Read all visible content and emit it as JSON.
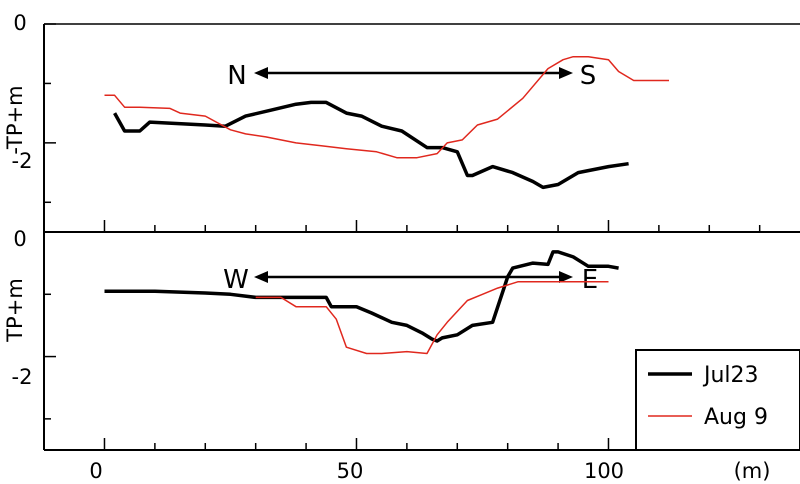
{
  "chart_data": [
    {
      "type": "line",
      "ylabel": "-TP+m",
      "ylim": [
        -3.5,
        0
      ],
      "xlim": [
        -12,
        138
      ],
      "yticks": [
        {
          "value": 0,
          "label": "0"
        },
        {
          "value": -2,
          "label": "-2"
        }
      ],
      "xtick_values": [
        0,
        50,
        100
      ],
      "direction": {
        "left": "N",
        "right": "S"
      },
      "series": [
        {
          "name": "Jul23",
          "color": "#000000",
          "x": [
            2,
            4,
            7,
            9,
            20,
            24,
            28,
            33,
            38,
            41,
            44,
            48,
            51,
            55,
            59,
            64,
            67,
            70,
            72,
            73,
            77,
            81,
            85,
            87,
            90,
            94,
            100,
            104
          ],
          "y": [
            -1.5,
            -1.8,
            -1.8,
            -1.65,
            -1.7,
            -1.72,
            -1.55,
            -1.45,
            -1.35,
            -1.32,
            -1.32,
            -1.5,
            -1.55,
            -1.72,
            -1.8,
            -2.08,
            -2.08,
            -2.15,
            -2.55,
            -2.55,
            -2.4,
            -2.5,
            -2.65,
            -2.75,
            -2.7,
            -2.5,
            -2.4,
            -2.35
          ]
        },
        {
          "name": "Aug 9",
          "color": "#e0281e",
          "x": [
            0,
            2,
            4,
            7,
            13,
            15,
            20,
            25,
            28,
            32,
            38,
            43,
            48,
            54,
            58,
            62,
            66,
            68,
            71,
            74,
            78,
            83,
            88,
            91,
            93,
            96,
            100,
            102,
            105,
            112
          ],
          "y": [
            -1.2,
            -1.2,
            -1.4,
            -1.4,
            -1.42,
            -1.5,
            -1.55,
            -1.78,
            -1.85,
            -1.9,
            -2.0,
            -2.05,
            -2.1,
            -2.15,
            -2.25,
            -2.25,
            -2.18,
            -2.0,
            -1.95,
            -1.7,
            -1.6,
            -1.25,
            -0.75,
            -0.6,
            -0.55,
            -0.55,
            -0.6,
            -0.8,
            -0.95,
            -0.95
          ]
        }
      ]
    },
    {
      "type": "line",
      "ylabel": "TP+m",
      "ylim": [
        -3.5,
        0
      ],
      "xlim": [
        -12,
        138
      ],
      "yticks": [
        {
          "value": 0,
          "label": "0"
        },
        {
          "value": -2,
          "label": "-2"
        }
      ],
      "xticks": [
        {
          "value": 0,
          "label": "0"
        },
        {
          "value": 50,
          "label": "50"
        },
        {
          "value": 100,
          "label": "100"
        }
      ],
      "x_unit": "(m)",
      "direction": {
        "left": "W",
        "right": "E"
      },
      "legend": {
        "position": "bottom-right",
        "entries": [
          "Jul23",
          "Aug 9"
        ]
      },
      "series": [
        {
          "name": "Jul23",
          "color": "#000000",
          "x": [
            0,
            5,
            10,
            20,
            25,
            30,
            35,
            40,
            44,
            45,
            50,
            53,
            57,
            60,
            63,
            65,
            66,
            67,
            70,
            73,
            77,
            80,
            81,
            85,
            88,
            89,
            90,
            93,
            96,
            100,
            102
          ],
          "y": [
            -0.95,
            -0.95,
            -0.95,
            -0.98,
            -1.0,
            -1.05,
            -1.05,
            -1.05,
            -1.05,
            -1.2,
            -1.2,
            -1.3,
            -1.45,
            -1.5,
            -1.62,
            -1.72,
            -1.75,
            -1.7,
            -1.65,
            -1.5,
            -1.45,
            -0.72,
            -0.58,
            -0.5,
            -0.52,
            -0.32,
            -0.32,
            -0.4,
            -0.55,
            -0.55,
            -0.58
          ]
        },
        {
          "name": "Aug 9",
          "color": "#e0281e",
          "x": [
            30,
            35,
            38,
            41,
            44,
            46,
            48,
            52,
            55,
            60,
            64,
            66,
            68,
            72,
            75,
            78,
            82,
            86,
            90,
            95,
            100
          ],
          "y": [
            -1.05,
            -1.05,
            -1.2,
            -1.2,
            -1.2,
            -1.4,
            -1.85,
            -1.95,
            -1.95,
            -1.92,
            -1.95,
            -1.65,
            -1.45,
            -1.1,
            -1.0,
            -0.9,
            -0.8,
            -0.8,
            -0.8,
            -0.8,
            -0.8
          ]
        }
      ]
    }
  ]
}
